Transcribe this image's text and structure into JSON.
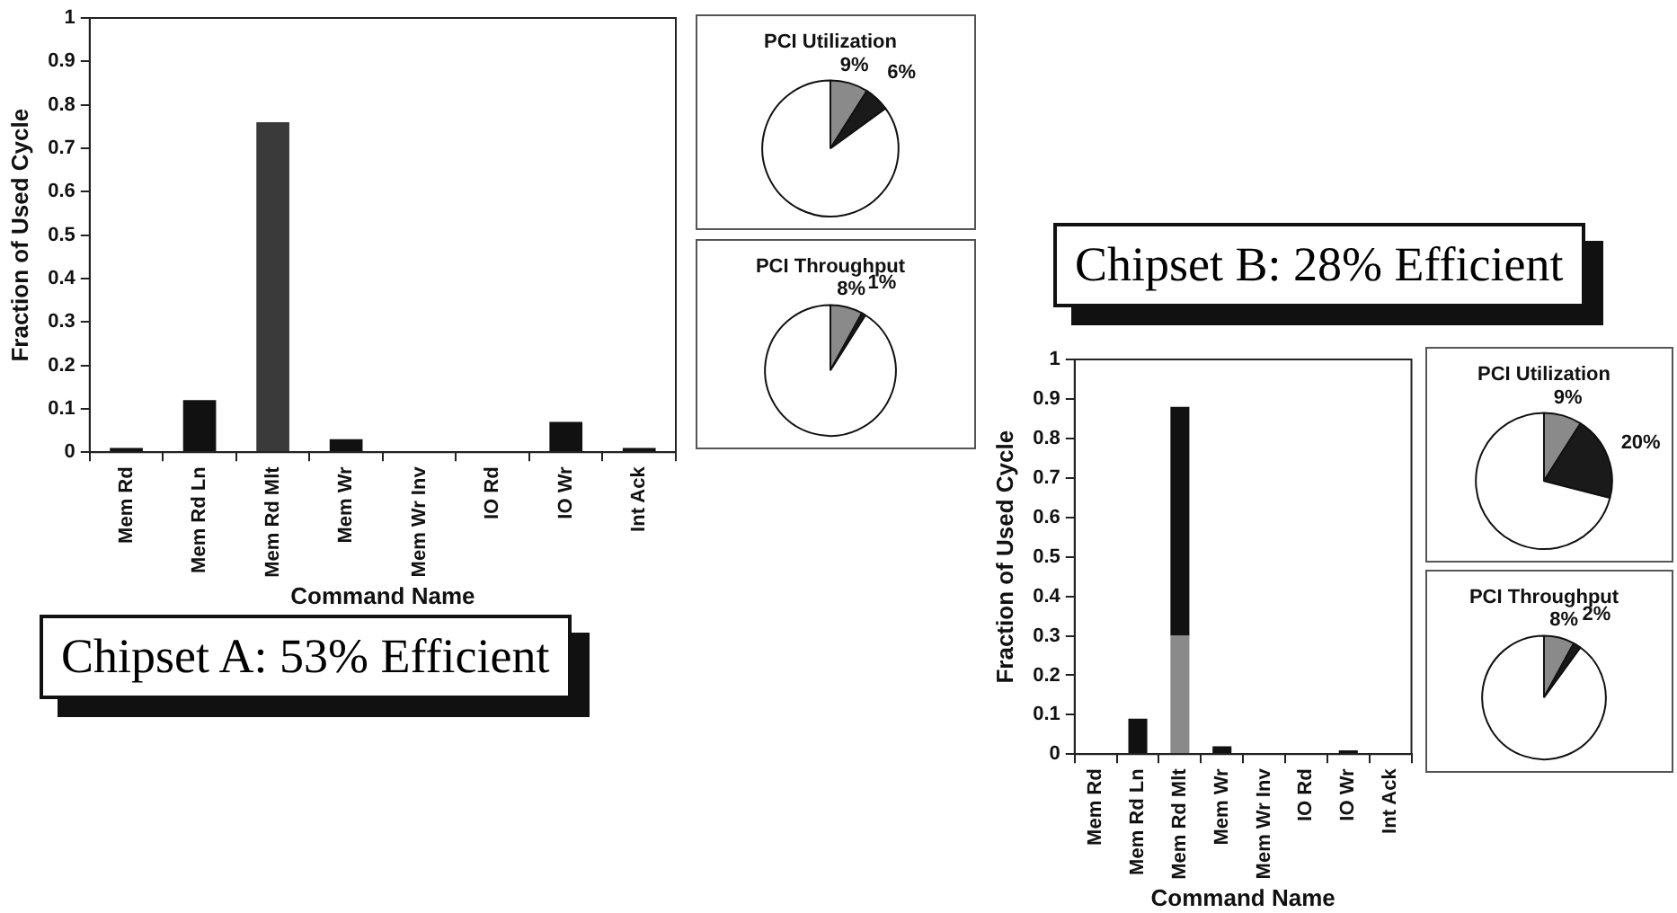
{
  "chart_data": [
    {
      "type": "bar",
      "xlabel": "Command Name",
      "ylabel": "Fraction of Used Cycle",
      "categories": [
        "Mem Rd",
        "Mem Rd Ln",
        "Mem Rd Mlt",
        "Mem Wr",
        "Mem Wr Inv",
        "IO Rd",
        "IO Wr",
        "Int Ack"
      ],
      "values": [
        0.01,
        0.12,
        0.76,
        0.03,
        0,
        0,
        0.07,
        0.01
      ],
      "colors": [
        "#111111",
        "#111111",
        "#3a3a3a",
        "#111111",
        "#111111",
        "#111111",
        "#111111",
        "#111111"
      ],
      "ylim": [
        0,
        1
      ],
      "yticks": [
        0,
        0.1,
        0.2,
        0.3,
        0.4,
        0.5,
        0.6,
        0.7,
        0.8,
        0.9,
        1
      ],
      "grid": false,
      "legend": false,
      "annotations": [
        "Chipset A: 53% Efficient"
      ]
    },
    {
      "type": "pie",
      "title": "PCI Utilization",
      "categories": [
        null,
        null,
        null
      ],
      "values": [
        9,
        6,
        85
      ],
      "colors": [
        "#8a8a8a",
        "#1a1a1a",
        "#ffffff"
      ],
      "value_labels": [
        "9%",
        "6%",
        null
      ],
      "legend": false
    },
    {
      "type": "pie",
      "title": "PCI Throughput",
      "categories": [
        null,
        null,
        null
      ],
      "values": [
        8,
        1,
        91
      ],
      "colors": [
        "#8a8a8a",
        "#1a1a1a",
        "#ffffff"
      ],
      "value_labels": [
        "8%",
        "1%",
        null
      ],
      "legend": false
    },
    {
      "type": "bar",
      "xlabel": "Command Name",
      "ylabel": "Fraction of Used Cycle",
      "categories": [
        "Mem Rd",
        "Mem Rd Ln",
        "Mem Rd Mlt",
        "Mem Wr",
        "Mem Wr Inv",
        "IO Rd",
        "IO Wr",
        "Int Ack"
      ],
      "stacked": true,
      "series": [
        {
          "color": "#8a8a8a",
          "values": [
            0,
            0,
            0.3,
            0,
            0,
            0,
            0,
            0
          ]
        },
        {
          "color": "#111111",
          "values": [
            0.003,
            0.09,
            0.58,
            0.02,
            0,
            0,
            0.01,
            0.003
          ]
        }
      ],
      "ylim": [
        0,
        1
      ],
      "yticks": [
        0,
        0.1,
        0.2,
        0.3,
        0.4,
        0.5,
        0.6,
        0.7,
        0.8,
        0.9,
        1
      ],
      "grid": false,
      "legend": false,
      "annotations": [
        "Chipset B: 28% Efficient"
      ]
    },
    {
      "type": "pie",
      "title": "PCI Utilization",
      "categories": [
        null,
        null,
        null
      ],
      "values": [
        9,
        20,
        71
      ],
      "colors": [
        "#8a8a8a",
        "#1a1a1a",
        "#ffffff"
      ],
      "value_labels": [
        "9%",
        "20%",
        null
      ],
      "legend": false
    },
    {
      "type": "pie",
      "title": "PCI Throughput",
      "categories": [
        null,
        null,
        null
      ],
      "values": [
        8,
        2,
        90
      ],
      "colors": [
        "#8a8a8a",
        "#1a1a1a",
        "#ffffff"
      ],
      "value_labels": [
        "8%",
        "2%",
        null
      ],
      "legend": false
    }
  ]
}
